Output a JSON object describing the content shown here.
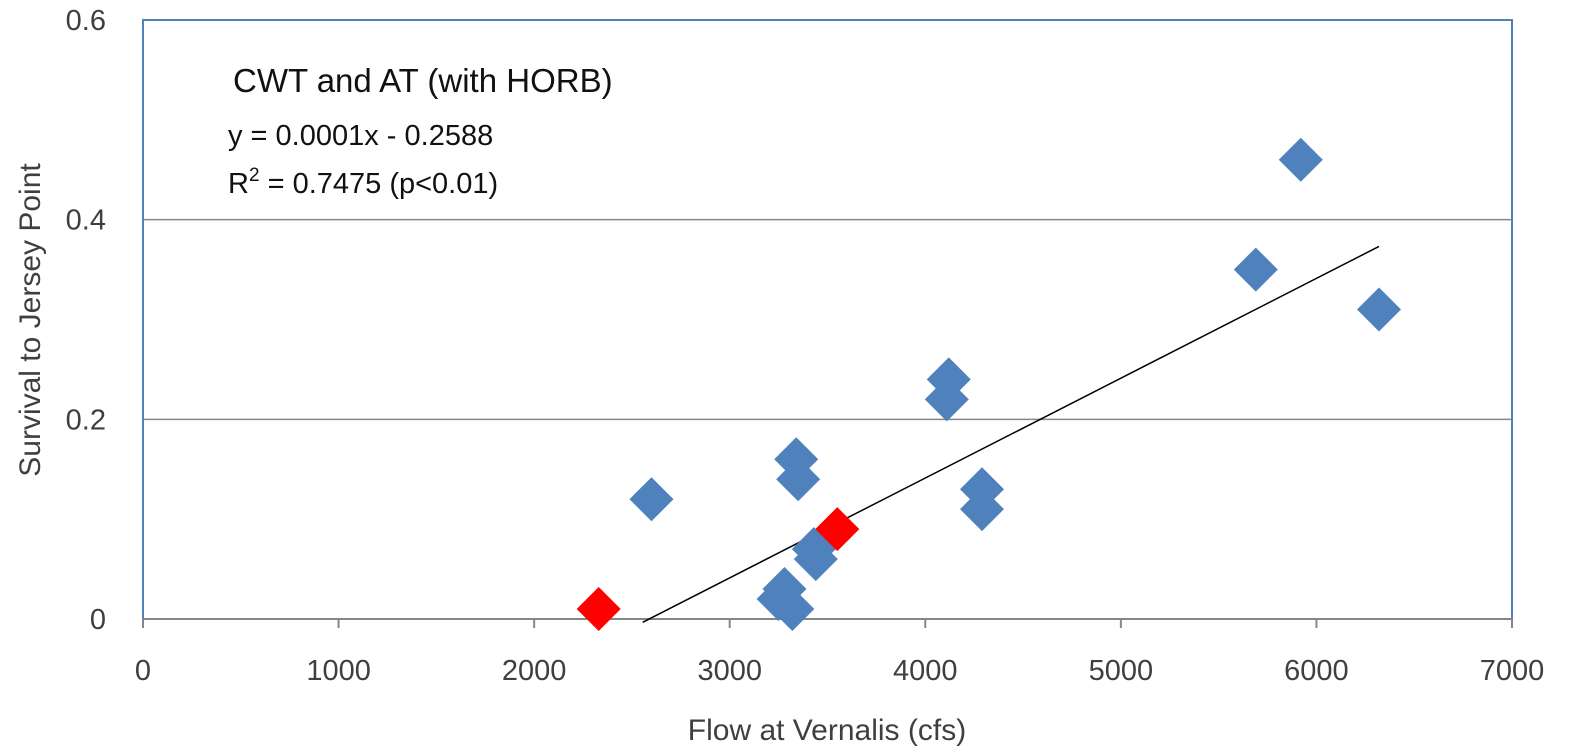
{
  "chart_data": {
    "type": "scatter",
    "title": "",
    "xlabel": "Flow at Vernalis (cfs)",
    "ylabel": "Survival to Jersey Point",
    "xlim": [
      0,
      7000
    ],
    "ylim": [
      0,
      0.6
    ],
    "xticks": [
      "0",
      "1000",
      "2000",
      "3000",
      "4000",
      "5000",
      "6000",
      "7000"
    ],
    "yticks": [
      "0",
      "0.2",
      "0.4",
      "0.6"
    ],
    "grid": "horizontal",
    "annotations": {
      "title": "CWT  and AT (with HORB)",
      "equation": "y = 0.0001x - 0.2588",
      "r2_prefix": "R",
      "r2_sup": "2",
      "r2_suffix": " = 0.7475 (p<0.01)"
    },
    "series": [
      {
        "color": "#4f81bd",
        "marker": "diamond",
        "points": [
          {
            "x": 2600,
            "y": 0.12
          },
          {
            "x": 3250,
            "y": 0.02
          },
          {
            "x": 3280,
            "y": 0.03
          },
          {
            "x": 3320,
            "y": 0.01
          },
          {
            "x": 3340,
            "y": 0.16
          },
          {
            "x": 3350,
            "y": 0.14
          },
          {
            "x": 3430,
            "y": 0.07
          },
          {
            "x": 3440,
            "y": 0.06
          },
          {
            "x": 4110,
            "y": 0.22
          },
          {
            "x": 4120,
            "y": 0.24
          },
          {
            "x": 4290,
            "y": 0.13
          },
          {
            "x": 4290,
            "y": 0.11
          },
          {
            "x": 5690,
            "y": 0.35
          },
          {
            "x": 5920,
            "y": 0.46
          },
          {
            "x": 6320,
            "y": 0.31
          }
        ]
      },
      {
        "color": "#ff0000",
        "marker": "diamond",
        "points": [
          {
            "x": 2330,
            "y": 0.01
          },
          {
            "x": 3550,
            "y": 0.09
          }
        ]
      }
    ],
    "trendline": {
      "color": "#000000",
      "x_start": 2555,
      "x_end": 6320,
      "slope": 0.0001,
      "intercept": -0.2588
    },
    "colors": {
      "plot_border": "#4f81bd",
      "grid": "#868686",
      "axis": "#868686"
    }
  }
}
